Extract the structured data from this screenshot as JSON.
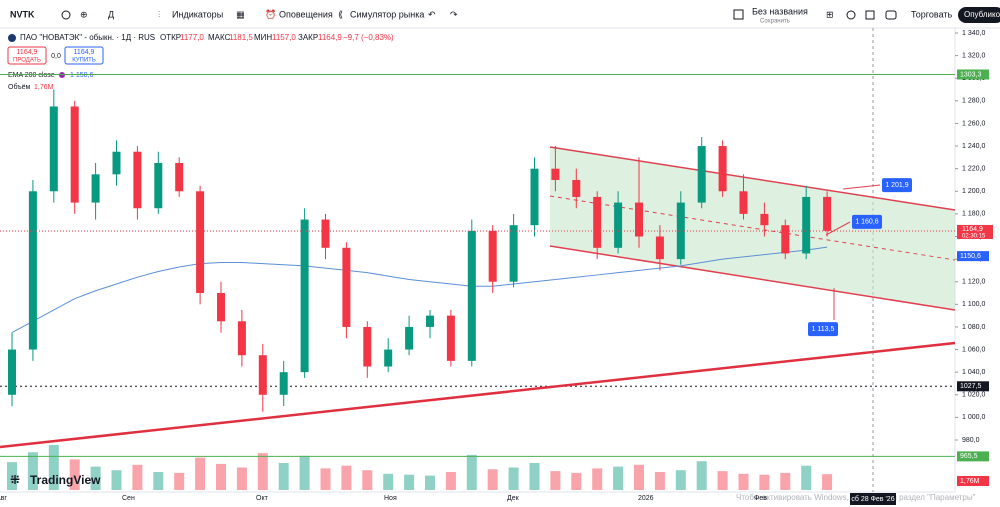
{
  "toolbar": {
    "symbol": "NVTK",
    "indicators": "Индикаторы",
    "alerts": "Оповещения",
    "simulator": "Симулятор рынка",
    "layout_name": "Без названия",
    "saved": "Сохранить",
    "trade": "Торговать",
    "publish": "Опубликов"
  },
  "legend": {
    "instrument": "ПАО \"НОВАТЭК\" - обыкн. · 1Д · RUS",
    "open_label": "ОТКР",
    "open": "1177,0",
    "high_label": "МАКС",
    "high": "1181,5",
    "low_label": "МИН",
    "low": "1157,0",
    "close_label": "ЗАКР",
    "close": "1164,9",
    "change": "−9,7 (−0,83%)",
    "sell_price": "1164,9",
    "sell": "ПРОДАТЬ",
    "spread": "0,0",
    "buy_price": "1164,9",
    "buy": "КУПИТЬ",
    "ema_name": "EMA 200 close",
    "ema_value": "1 150,6",
    "volume_name": "Объём",
    "volume_value": "1,76M"
  },
  "footer": {
    "logo": "TradingView",
    "watermark": "Чтобы активировать Windows, перейдите в раздел \"Параметры\"",
    "date_badge": "сб 28 Фев '26"
  },
  "chart_data": {
    "type": "candlestick",
    "x_labels": [
      "Авг",
      "Сен",
      "Окт",
      "Ноя",
      "Дек",
      "2026",
      "Фев"
    ],
    "candles": [
      [
        1020,
        1075,
        1010,
        1060
      ],
      [
        1060,
        1210,
        1050,
        1200
      ],
      [
        1200,
        1290,
        1190,
        1275
      ],
      [
        1275,
        1280,
        1180,
        1190
      ],
      [
        1190,
        1225,
        1175,
        1215
      ],
      [
        1215,
        1245,
        1205,
        1235
      ],
      [
        1235,
        1240,
        1175,
        1185
      ],
      [
        1185,
        1235,
        1180,
        1225
      ],
      [
        1225,
        1230,
        1195,
        1200
      ],
      [
        1200,
        1205,
        1100,
        1110
      ],
      [
        1110,
        1120,
        1075,
        1085
      ],
      [
        1085,
        1095,
        1045,
        1055
      ],
      [
        1055,
        1065,
        1005,
        1020
      ],
      [
        1020,
        1050,
        1010,
        1040
      ],
      [
        1040,
        1185,
        1035,
        1175
      ],
      [
        1175,
        1180,
        1140,
        1150
      ],
      [
        1150,
        1155,
        1070,
        1080
      ],
      [
        1080,
        1085,
        1035,
        1045
      ],
      [
        1045,
        1070,
        1040,
        1060
      ],
      [
        1060,
        1090,
        1055,
        1080
      ],
      [
        1080,
        1095,
        1070,
        1090
      ],
      [
        1090,
        1095,
        1045,
        1050
      ],
      [
        1050,
        1175,
        1045,
        1165
      ],
      [
        1165,
        1170,
        1110,
        1120
      ],
      [
        1120,
        1180,
        1115,
        1170
      ],
      [
        1170,
        1230,
        1160,
        1220
      ],
      [
        1220,
        1240,
        1200,
        1210
      ],
      [
        1210,
        1220,
        1185,
        1195
      ],
      [
        1195,
        1200,
        1140,
        1150
      ],
      [
        1150,
        1200,
        1145,
        1190
      ],
      [
        1190,
        1230,
        1150,
        1160
      ],
      [
        1160,
        1170,
        1130,
        1140
      ],
      [
        1140,
        1200,
        1135,
        1190
      ],
      [
        1190,
        1248,
        1185,
        1240
      ],
      [
        1240,
        1245,
        1195,
        1200
      ],
      [
        1200,
        1215,
        1175,
        1180
      ],
      [
        1180,
        1190,
        1160,
        1170
      ],
      [
        1170,
        1175,
        1140,
        1145
      ],
      [
        1145,
        1205,
        1140,
        1195
      ],
      [
        1195,
        1200,
        1160,
        1165
      ]
    ],
    "ema": [
      1075,
      1085,
      1095,
      1105,
      1112,
      1118,
      1124,
      1129,
      1133,
      1136,
      1137,
      1137,
      1136,
      1135,
      1134,
      1132,
      1130,
      1128,
      1125,
      1122,
      1120,
      1118,
      1116,
      1116,
      1118,
      1120,
      1122,
      1124,
      1126,
      1128,
      1130,
      1132,
      1134,
      1137,
      1140,
      1142,
      1144,
      1146,
      1148,
      1150.6
    ],
    "volumes": [
      3.1,
      4.2,
      5.0,
      3.4,
      2.6,
      2.2,
      2.8,
      2.0,
      1.9,
      3.6,
      2.9,
      2.5,
      4.1,
      3.0,
      3.8,
      2.4,
      2.7,
      2.2,
      1.8,
      1.7,
      1.6,
      2.0,
      3.9,
      2.3,
      2.5,
      3.0,
      2.1,
      1.9,
      2.4,
      2.6,
      2.8,
      2.0,
      2.2,
      3.2,
      2.1,
      1.8,
      1.7,
      1.9,
      2.7,
      1.76
    ],
    "up_color": "#089981",
    "down_color": "#f23645",
    "ema_color": "#5b8fd6",
    "ylim": [
      980,
      1340
    ],
    "yticks": [
      {
        "value": 1340,
        "label": "1 340,0"
      },
      {
        "value": 1320,
        "label": "1 320,0"
      },
      {
        "value": 1300,
        "label": "1 300,0"
      },
      {
        "value": 1280,
        "label": "1 280,0"
      },
      {
        "value": 1260,
        "label": "1 260,0"
      },
      {
        "value": 1240,
        "label": "1 240,0"
      },
      {
        "value": 1220,
        "label": "1 220,0"
      },
      {
        "value": 1200,
        "label": "1 200,0"
      },
      {
        "value": 1180,
        "label": "1 180,0"
      },
      {
        "value": 1160,
        "label": "1 160,0"
      },
      {
        "value": 1140,
        "label": "1 140,0"
      },
      {
        "value": 1120,
        "label": "1 120,0"
      },
      {
        "value": 1100,
        "label": "1 100,0"
      },
      {
        "value": 1080,
        "label": "1 080,0"
      },
      {
        "value": 1060,
        "label": "1 060,0"
      },
      {
        "value": 1040,
        "label": "1 040,0"
      },
      {
        "value": 1020,
        "label": "1 020,0"
      },
      {
        "value": 1000,
        "label": "1 000,0"
      },
      {
        "value": 980,
        "label": "980,0"
      }
    ],
    "levels": [
      {
        "value": 1303.3,
        "label": "1303,3",
        "color": "#4caf50"
      },
      {
        "value": 965.5,
        "label": "965,5",
        "color": "#4caf50"
      },
      {
        "value": 1027.5,
        "label": "1027,5",
        "color": "#131722"
      }
    ],
    "price": {
      "value": 1164.9,
      "label": "1164,9",
      "countdown": "02:30:15",
      "color": "#f23645"
    },
    "ema_badge": {
      "value": 1150.6,
      "label": "1150,6"
    },
    "volume_badge": "1,76M",
    "callouts": [
      {
        "value": 1201.9,
        "label": "1 201,9"
      },
      {
        "value": 1160.6,
        "label": "1 160,6"
      },
      {
        "value": 1113.5,
        "label": "1 113,5"
      }
    ]
  }
}
